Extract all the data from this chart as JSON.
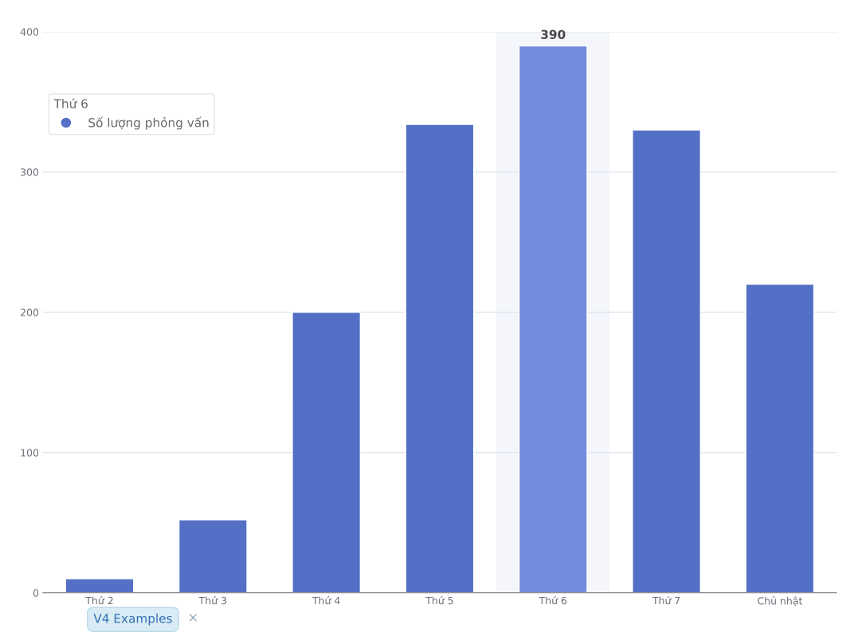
{
  "chart_data": {
    "type": "bar",
    "categories": [
      "Thứ 2",
      "Thứ 3",
      "Thứ 4",
      "Thứ 5",
      "Thứ 6",
      "Thứ 7",
      "Chủ nhật"
    ],
    "series": [
      {
        "name": "Số lượng phỏng vấn",
        "color": "#5470c6",
        "colors": [
          "#5470c6",
          "#5470c6",
          "#5470c6",
          "#5470c6",
          "#738ddd",
          "#5470c6",
          "#5470c6"
        ],
        "values": [
          10,
          52,
          200,
          334,
          390,
          330,
          220
        ],
        "value_labels": [
          null,
          null,
          null,
          null,
          "390",
          null,
          null
        ]
      }
    ],
    "legend_title": "Thứ 6",
    "ylim": [
      0,
      400
    ],
    "yticks": [
      0,
      100,
      200,
      300,
      400
    ],
    "grid": "y",
    "legend": "top left",
    "bands": [
      {
        "axis": "x",
        "from": "Thứ 6",
        "to": "Thứ 6",
        "color": "#f5f6fb"
      }
    ],
    "annotations": [
      "V4 Examples",
      "×"
    ]
  }
}
